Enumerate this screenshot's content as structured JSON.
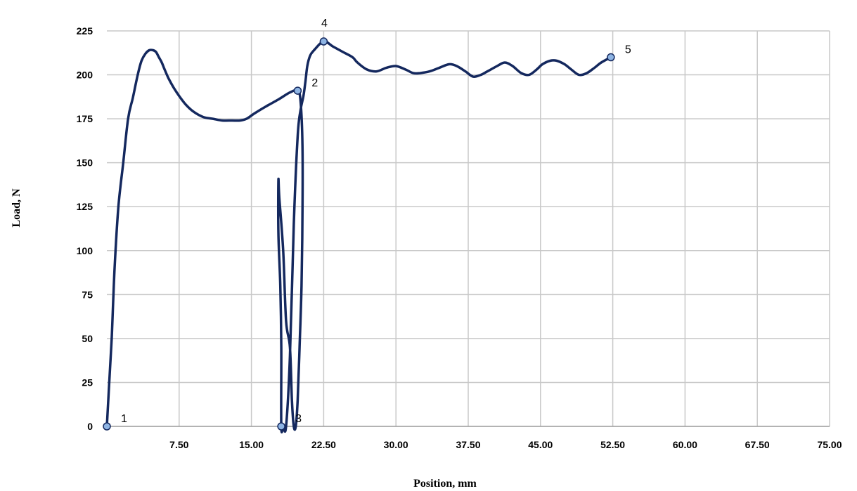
{
  "chart_data": {
    "type": "line",
    "title": "",
    "xlabel": "Position, mm",
    "ylabel": "Load, N",
    "xlim": [
      0,
      75
    ],
    "ylim": [
      0,
      225
    ],
    "x_ticks": [
      7.5,
      15,
      22.5,
      30,
      37.5,
      45,
      52.5,
      60,
      67.5,
      75
    ],
    "x_tick_labels": [
      "7.50",
      "15.00",
      "22.50",
      "30.00",
      "37.50",
      "45.00",
      "52.50",
      "60.00",
      "67.50",
      "75.00"
    ],
    "y_ticks": [
      0,
      25,
      50,
      75,
      100,
      125,
      150,
      175,
      200,
      225
    ],
    "y_tick_labels": [
      "0",
      "25",
      "50",
      "75",
      "100",
      "125",
      "150",
      "175",
      "200",
      "225"
    ],
    "grid": true,
    "line_color": "#14285e",
    "marker_color": "#8eb4e3",
    "series": [
      {
        "x": [
          0,
          0.2,
          0.5,
          0.8,
          1.2,
          1.7,
          2.2,
          2.7,
          3.2,
          3.6,
          4.0,
          4.4,
          4.8,
          5.1,
          5.4,
          5.7,
          6.0,
          6.4,
          6.9,
          7.5,
          8.2,
          9.0,
          10.0,
          11.0,
          12.0,
          13.0,
          13.8,
          14.5,
          15.3,
          16.5,
          17.8,
          19.0,
          19.8,
          20.1,
          20.3,
          20.3,
          20.2,
          20.0,
          19.8,
          19.6,
          19.4,
          19.2,
          19.0,
          18.6,
          18.3,
          17.9,
          17.8,
          17.8,
          18.0,
          18.1,
          18.1,
          18.3,
          18.6,
          19.0,
          19.4,
          19.8,
          20.1,
          20.4,
          20.6,
          20.8,
          21.1,
          21.5,
          22.5,
          23.5,
          24.5,
          25.5,
          26.0,
          27.0,
          28.0,
          29.0,
          30.0,
          31.0,
          31.8,
          32.5,
          33.5,
          34.5,
          35.5,
          36.3,
          37.2,
          38.0,
          38.8,
          39.5,
          40.5,
          41.3,
          42.1,
          43.0,
          43.8,
          44.6,
          45.2,
          46.0,
          46.7,
          47.5,
          48.2,
          49.0,
          49.8,
          50.6,
          51.3,
          52.3
        ],
        "y": [
          0,
          20,
          50,
          90,
          125,
          150,
          175,
          187,
          200,
          208,
          212,
          214,
          214,
          213,
          210,
          207,
          203,
          198,
          193,
          188,
          183,
          179,
          176,
          175,
          174,
          174,
          174,
          175,
          178,
          182,
          186,
          190,
          191,
          185,
          160,
          120,
          80,
          45,
          15,
          0,
          0,
          15,
          45,
          60,
          100,
          130,
          140,
          110,
          80,
          45,
          0,
          0,
          0,
          40,
          115,
          165,
          180,
          188,
          196,
          205,
          211,
          214,
          219,
          216,
          213,
          210,
          207,
          203,
          202,
          204,
          205,
          203,
          201,
          201,
          202,
          204,
          206,
          205,
          202,
          199,
          200,
          202,
          205,
          207,
          205,
          201,
          200,
          203,
          206,
          208,
          208,
          206,
          203,
          200,
          201,
          204,
          207,
          210
        ]
      }
    ],
    "points": [
      {
        "label": "1",
        "x": 0,
        "y": 0,
        "label_pos": "right"
      },
      {
        "label": "2",
        "x": 19.8,
        "y": 191,
        "label_pos": "right"
      },
      {
        "label": "3",
        "x": 18.1,
        "y": 0,
        "label_pos": "right"
      },
      {
        "label": "4",
        "x": 22.5,
        "y": 219,
        "label_pos": "above"
      },
      {
        "label": "5",
        "x": 52.3,
        "y": 210,
        "label_pos": "right"
      }
    ]
  }
}
